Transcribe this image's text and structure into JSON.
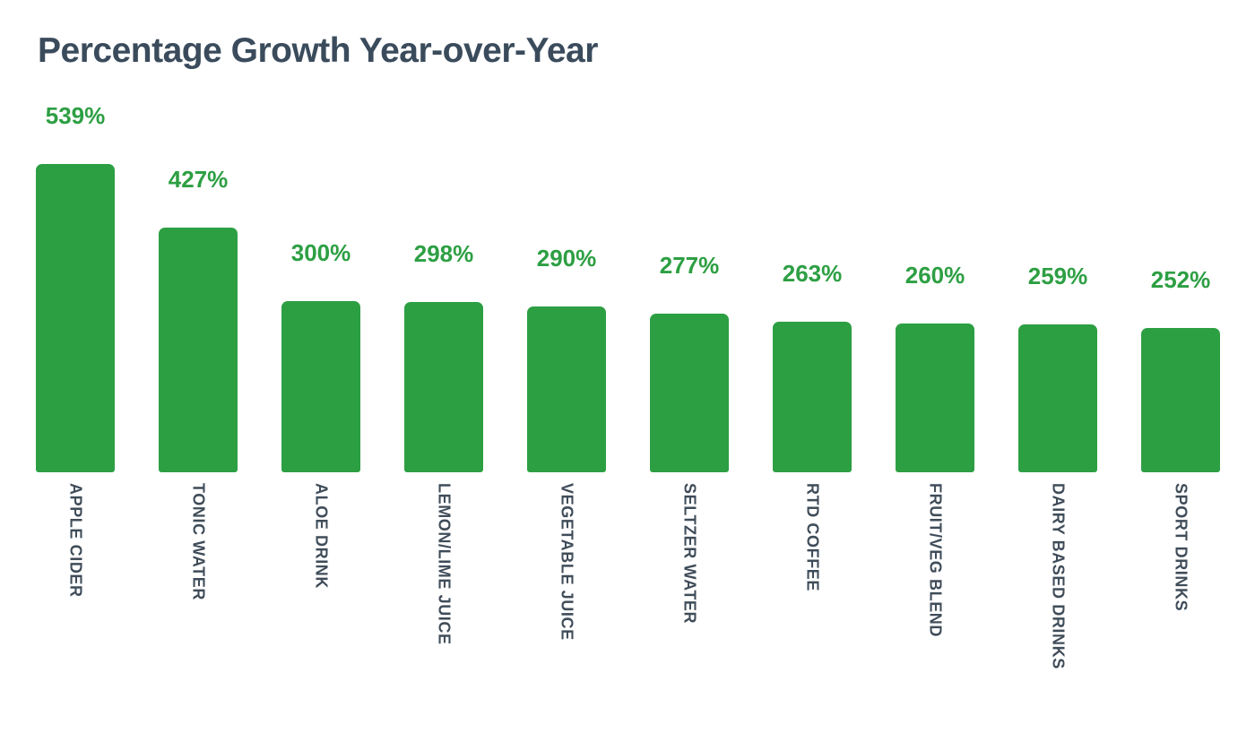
{
  "page": {
    "background": "#ffffff"
  },
  "chart_data": {
    "type": "bar",
    "title": "Percentage Growth Year-over-Year",
    "orientation": "vertical",
    "grid": false,
    "legend": "none",
    "unit": "%",
    "ylim": [
      0,
      539
    ],
    "categories": [
      "APPLE CIDER",
      "TONIC WATER",
      "ALOE DRINK",
      "LEMON/LIME JUICE",
      "VEGETABLE JUICE",
      "SELTZER WATER",
      "RTD COFFEE",
      "FRUIT/VEG BLEND",
      "DAIRY BASED DRINKS",
      "SPORT DRINKS"
    ],
    "values": [
      539,
      427,
      300,
      298,
      290,
      277,
      263,
      260,
      259,
      252
    ],
    "value_labels": [
      "539%",
      "427%",
      "300%",
      "298%",
      "290%",
      "277%",
      "263%",
      "260%",
      "259%",
      "252%"
    ],
    "bar_color": "#2d9f43",
    "value_label_color": "#2d9f43",
    "title_color": "#3a4b5c",
    "category_label_color": "#3f4c59"
  }
}
